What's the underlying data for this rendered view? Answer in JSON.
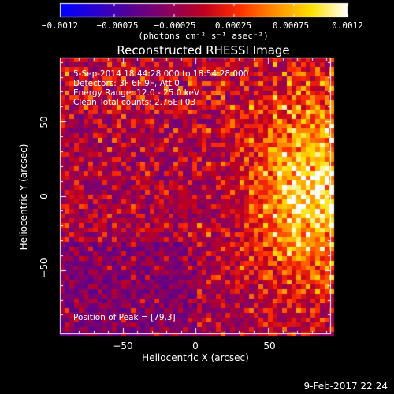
{
  "chart_data": {
    "type": "heatmap",
    "title": "Reconstructed RHESSI Image",
    "xlabel": "Heliocentric X (arcsec)",
    "ylabel": "Heliocentric Y (arcsec)",
    "xlim": [
      -93,
      93
    ],
    "ylim": [
      -93,
      93
    ],
    "x_ticks": [
      -50,
      0,
      50
    ],
    "x_tick_labels": [
      "−50",
      "0",
      "50"
    ],
    "y_ticks": [
      -50,
      0,
      50
    ],
    "y_tick_labels": [
      "−50",
      "0",
      "50"
    ],
    "colorbar": {
      "range": [
        -0.0012,
        0.0012
      ],
      "ticks": [
        -0.0012,
        -0.00075,
        -0.00025,
        0.00025,
        0.00075,
        0.0012
      ],
      "tick_labels": [
        "−0.0012",
        "−0.00075",
        "−0.00025",
        "0.00025",
        "0.00075",
        "0.0012"
      ],
      "unit_label": "(photons cm⁻² s⁻¹ asec⁻²)",
      "colors": [
        "#0000ff",
        "#2a00d0",
        "#5a0090",
        "#8a0060",
        "#c00020",
        "#ff3000",
        "#ff9000",
        "#ffe000",
        "#ffffff"
      ]
    },
    "annotations": [
      "5-Sep-2014 18:44:28.000 to 18:54:28.000",
      "Detectors: 3F 6F 9F, Att 0",
      "Energy Range: 12.0 - 25.0 keV",
      "Clean     Total counts: 2.76E+03"
    ],
    "peak_label": "Position of Peak = [79,3]",
    "peak_position": [
      79,
      3
    ],
    "timestamp": "9-Feb-2017 22:24"
  }
}
